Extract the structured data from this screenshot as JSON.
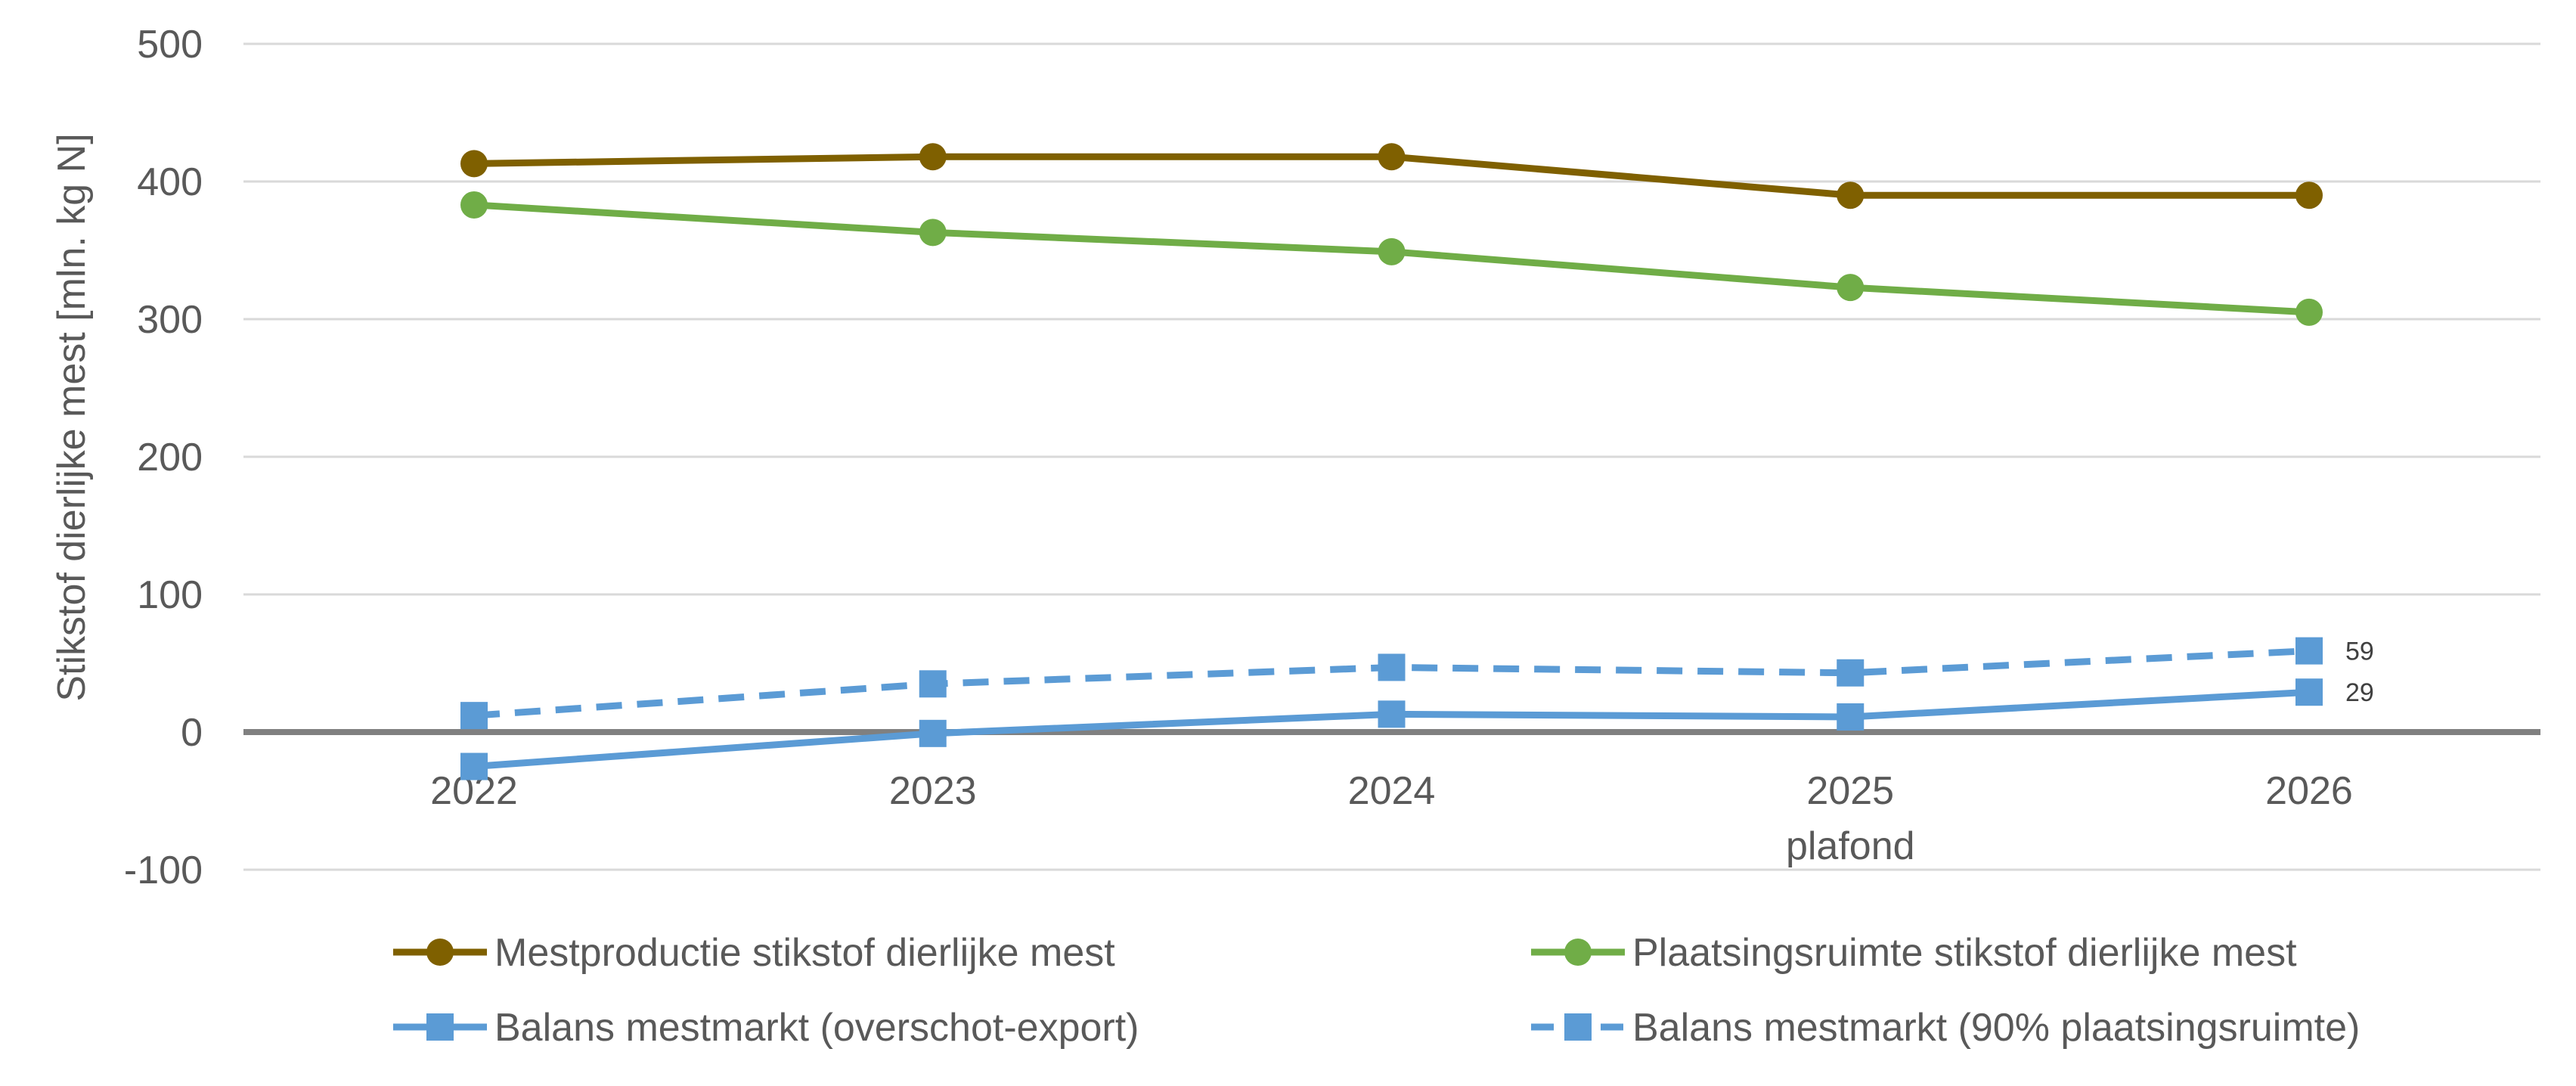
{
  "chart_data": {
    "type": "line",
    "title": "",
    "xlabel": "",
    "ylabel": "Stikstof dierlijke mest [mln. kg N]",
    "ylim": [
      -100,
      500
    ],
    "yticks": [
      -100,
      0,
      100,
      200,
      300,
      400,
      500
    ],
    "grid": true,
    "legend_position": "bottom",
    "categories": [
      "2022",
      "2023",
      "2024",
      "2025",
      "2026"
    ],
    "category_sublabels": [
      "",
      "",
      "",
      "plafond",
      ""
    ],
    "series": [
      {
        "name": "Mestproductie stikstof dierlijke mest",
        "values": [
          413,
          418,
          418,
          390,
          390
        ],
        "color": "#7F6000",
        "marker": "circle",
        "dash": "solid",
        "data_labels": [
          "",
          "",
          "",
          "",
          ""
        ]
      },
      {
        "name": "Plaatsingsruimte stikstof dierlijke mest",
        "values": [
          383,
          363,
          349,
          323,
          305
        ],
        "color": "#70AD47",
        "marker": "circle",
        "dash": "solid",
        "data_labels": [
          "",
          "",
          "",
          "",
          ""
        ]
      },
      {
        "name": "Balans mestmarkt (overschot-export)",
        "values": [
          -25,
          -1,
          13,
          11,
          29
        ],
        "color": "#5B9BD5",
        "marker": "square",
        "dash": "solid",
        "data_labels": [
          "",
          "",
          "",
          "",
          "29"
        ]
      },
      {
        "name": "Balans mestmarkt (90% plaatsingsruimte)",
        "values": [
          12,
          35,
          47,
          43,
          59
        ],
        "color": "#5B9BD5",
        "marker": "square",
        "dash": "dashed",
        "data_labels": [
          "",
          "",
          "",
          "",
          "59"
        ]
      }
    ]
  }
}
